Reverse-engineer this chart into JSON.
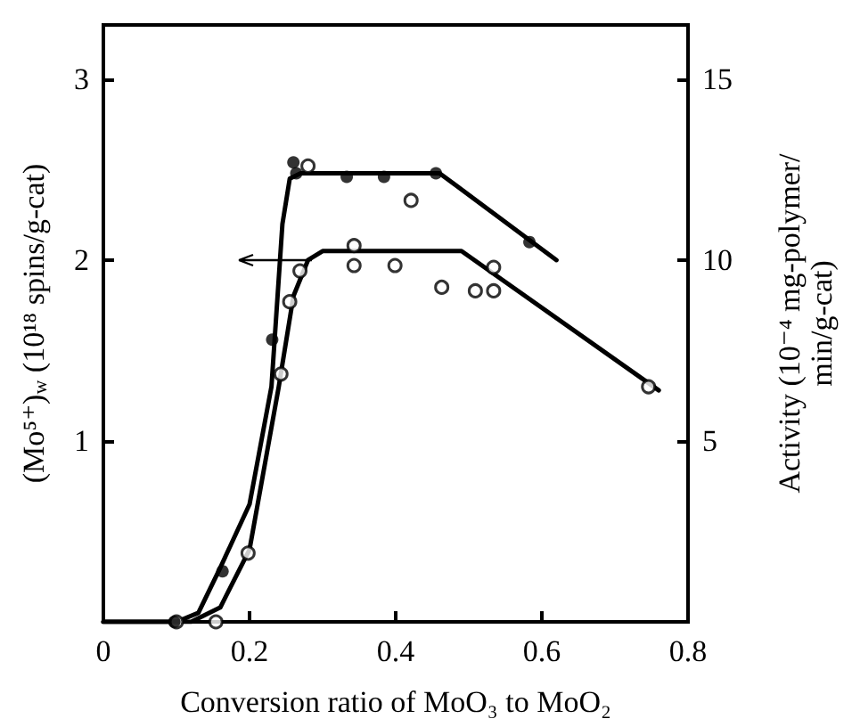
{
  "chart_data": {
    "type": "scatter",
    "xlabel": "Conversion ratio of MoO₃ to MoO₂",
    "ylabel": "(Mo⁵⁺)$_{w}$ (10¹⁸ spins/g-cat)",
    "y2label": "Activity (10⁻⁴ mg-polymer/\nmin/g-cat)",
    "xlim": [
      0,
      0.8
    ],
    "xticks": [
      0,
      0.2,
      0.4,
      0.6,
      0.8
    ],
    "ylim": [
      0,
      3.3
    ],
    "yticks": [
      1,
      2,
      3
    ],
    "y2lim": [
      0,
      16.5
    ],
    "y2ticks": [
      5,
      10,
      15
    ],
    "grid": false,
    "series": [
      {
        "axis": "y",
        "color": "#000000",
        "marker": "circle",
        "x": [
          0.1,
          0.154,
          0.198,
          0.243,
          0.255,
          0.269,
          0.28,
          0.343,
          0.343,
          0.399,
          0.421,
          0.463,
          0.509,
          0.534,
          0.534,
          0.746
        ],
        "values": [
          0,
          0,
          0.38,
          1.37,
          1.77,
          1.94,
          2.52,
          2.08,
          1.97,
          1.97,
          2.33,
          1.85,
          1.83,
          1.96,
          1.83,
          1.3
        ]
      },
      {
        "type": "line",
        "axis": "y",
        "color": "#000000",
        "marker": "none",
        "line_style": "solid",
        "x": [
          0,
          0.12,
          0.16,
          0.2,
          0.24,
          0.26,
          0.28,
          0.3,
          0.49,
          0.76
        ],
        "values": [
          0,
          0,
          0.08,
          0.4,
          1.3,
          1.8,
          2.0,
          2.05,
          2.05,
          1.28
        ]
      },
      {
        "axis": "y2",
        "color": "#000000",
        "marker": "circle",
        "x": [
          0.097,
          0.163,
          0.231,
          0.26,
          0.264,
          0.333,
          0.384,
          0.455,
          0.583
        ],
        "values": [
          0,
          1.4,
          7.8,
          12.7,
          12.4,
          12.3,
          12.3,
          12.4,
          10.5
        ]
      },
      {
        "type": "line",
        "axis": "y2",
        "color": "#000000",
        "marker": "none",
        "line_style": "solid",
        "x": [
          0,
          0.1,
          0.13,
          0.16,
          0.2,
          0.23,
          0.245,
          0.255,
          0.27,
          0.46,
          0.62
        ],
        "values": [
          0,
          0,
          0.25,
          1.5,
          3.25,
          6.5,
          11,
          12.25,
          12.4,
          12.4,
          10
        ]
      }
    ]
  }
}
